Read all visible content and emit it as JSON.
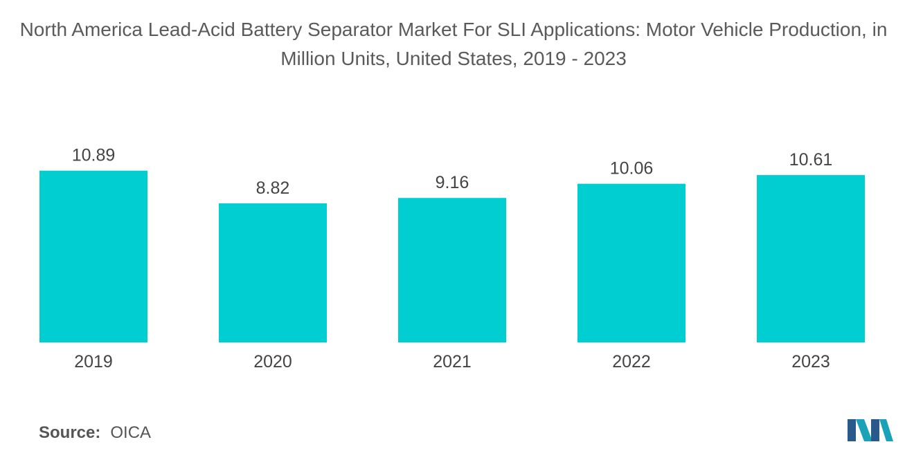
{
  "chart_data": {
    "type": "bar",
    "title": "North America Lead-Acid Battery Separator Market For SLI Applications: Motor Vehicle Production, in Million Units, United States, 2019 - 2023",
    "categories": [
      "2019",
      "2020",
      "2021",
      "2022",
      "2023"
    ],
    "values": [
      10.89,
      8.82,
      9.16,
      10.06,
      10.61
    ],
    "value_labels": [
      "10.89",
      "8.82",
      "9.16",
      "10.06",
      "10.61"
    ],
    "xlabel": "",
    "ylabel": "",
    "ylim": [
      0,
      11
    ],
    "grid": false,
    "legend": "none",
    "bar_color": "#00ced1"
  },
  "source": {
    "label": "Source:",
    "value": "OICA"
  },
  "logo": {
    "icon": "mordor-intelligence-logo-icon",
    "colors": [
      "#1aa3b8",
      "#2a5a8c"
    ]
  }
}
